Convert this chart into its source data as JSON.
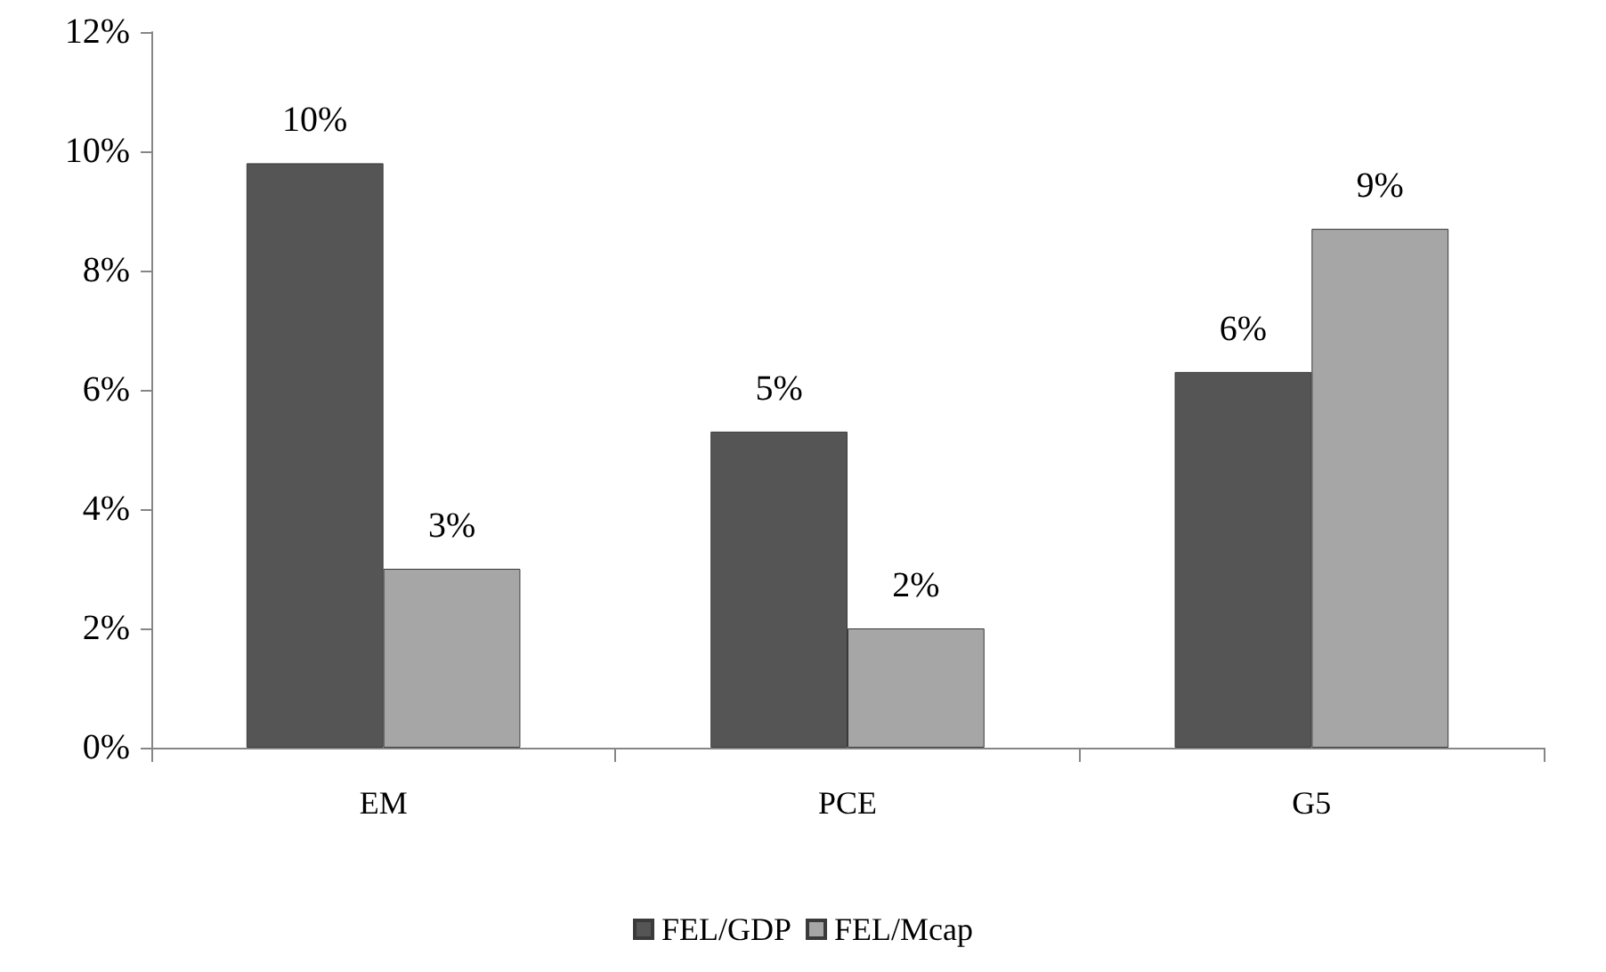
{
  "chart_data": {
    "type": "bar",
    "categories": [
      "EM",
      "PCE",
      "G5"
    ],
    "series": [
      {
        "name": "FEL/GDP",
        "color": "#555555",
        "values": [
          9.8,
          5.3,
          6.3
        ],
        "value_labels": [
          "10%",
          "5%",
          "6%"
        ]
      },
      {
        "name": "FEL/Mcap",
        "color": "#a6a6a6",
        "values": [
          3.0,
          2.0,
          8.7
        ],
        "value_labels": [
          "3%",
          "2%",
          "9%"
        ]
      }
    ],
    "ylim": [
      0,
      12
    ],
    "yticks": [
      {
        "value": 0,
        "label": "0%"
      },
      {
        "value": 2,
        "label": "2%"
      },
      {
        "value": 4,
        "label": "4%"
      },
      {
        "value": 6,
        "label": "6%"
      },
      {
        "value": 8,
        "label": "8%"
      },
      {
        "value": 10,
        "label": "10%"
      },
      {
        "value": 12,
        "label": "12%"
      }
    ],
    "grid": false,
    "legend": "bottom"
  }
}
